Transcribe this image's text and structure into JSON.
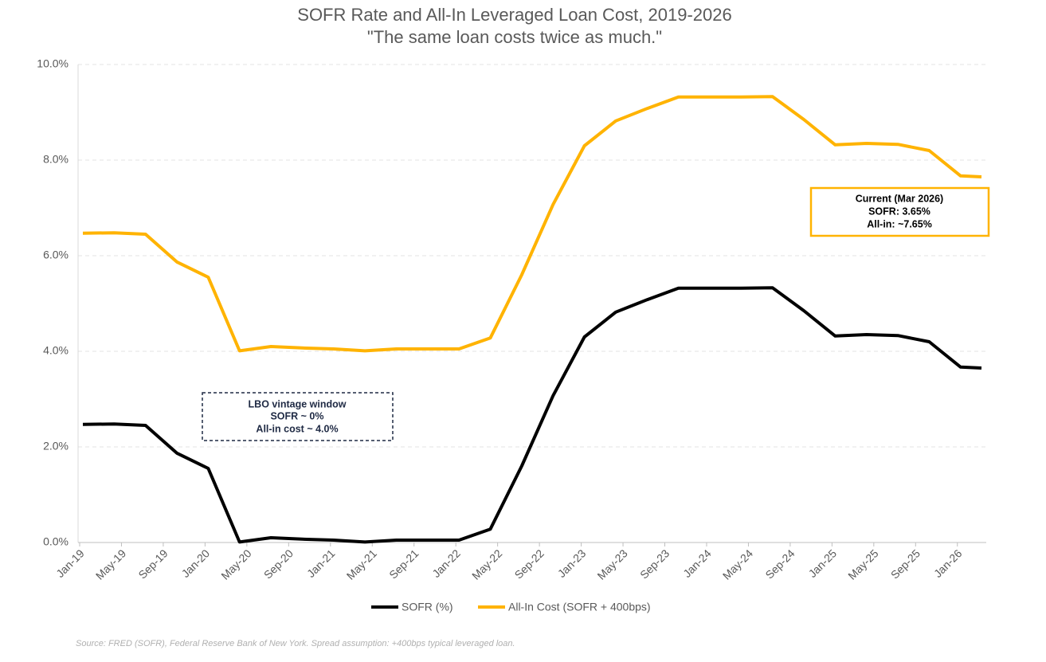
{
  "chart_data": {
    "type": "line",
    "title": "SOFR Rate and All-In Leveraged Loan Cost, 2019-2026",
    "subtitle": "\"The same loan costs twice as much.\"",
    "x": [
      "2019-01",
      "2019-04",
      "2019-07",
      "2019-10",
      "2020-01",
      "2020-04",
      "2020-07",
      "2020-10",
      "2021-01",
      "2021-04",
      "2021-07",
      "2021-10",
      "2022-01",
      "2022-04",
      "2022-07",
      "2022-10",
      "2023-01",
      "2023-04",
      "2023-07",
      "2023-10",
      "2024-01",
      "2024-04",
      "2024-07",
      "2024-10",
      "2025-01",
      "2025-04",
      "2025-07",
      "2025-10",
      "2026-01",
      "2026-03"
    ],
    "series": [
      {
        "name": "SOFR (%)",
        "color": "#000000",
        "values": [
          2.47,
          2.48,
          2.45,
          1.87,
          1.55,
          0.01,
          0.1,
          0.07,
          0.05,
          0.01,
          0.05,
          0.05,
          0.05,
          0.28,
          1.6,
          3.07,
          4.3,
          4.82,
          5.08,
          5.32,
          5.32,
          5.32,
          5.33,
          4.85,
          4.32,
          4.35,
          4.33,
          4.2,
          3.67,
          3.65
        ]
      },
      {
        "name": "All-In Cost (SOFR + 400bps)",
        "color": "#FFB300",
        "values": [
          6.47,
          6.48,
          6.45,
          5.87,
          5.55,
          4.01,
          4.1,
          4.07,
          4.05,
          4.01,
          4.05,
          4.05,
          4.05,
          4.28,
          5.6,
          7.07,
          8.3,
          8.82,
          9.08,
          9.32,
          9.32,
          9.32,
          9.33,
          8.85,
          8.32,
          8.35,
          8.33,
          8.2,
          7.67,
          7.65
        ]
      }
    ],
    "xlim": [
      "2019-01",
      "2026-03"
    ],
    "xticks": [
      {
        "value": "2019-01",
        "label": "Jan-19"
      },
      {
        "value": "2019-05",
        "label": "May-19"
      },
      {
        "value": "2019-09",
        "label": "Sep-19"
      },
      {
        "value": "2020-01",
        "label": "Jan-20"
      },
      {
        "value": "2020-05",
        "label": "May-20"
      },
      {
        "value": "2020-09",
        "label": "Sep-20"
      },
      {
        "value": "2021-01",
        "label": "Jan-21"
      },
      {
        "value": "2021-05",
        "label": "May-21"
      },
      {
        "value": "2021-09",
        "label": "Sep-21"
      },
      {
        "value": "2022-01",
        "label": "Jan-22"
      },
      {
        "value": "2022-05",
        "label": "May-22"
      },
      {
        "value": "2022-09",
        "label": "Sep-22"
      },
      {
        "value": "2023-01",
        "label": "Jan-23"
      },
      {
        "value": "2023-05",
        "label": "May-23"
      },
      {
        "value": "2023-09",
        "label": "Sep-23"
      },
      {
        "value": "2024-01",
        "label": "Jan-24"
      },
      {
        "value": "2024-05",
        "label": "May-24"
      },
      {
        "value": "2024-09",
        "label": "Sep-24"
      },
      {
        "value": "2025-01",
        "label": "Jan-25"
      },
      {
        "value": "2025-05",
        "label": "May-25"
      },
      {
        "value": "2025-09",
        "label": "Sep-25"
      },
      {
        "value": "2026-01",
        "label": "Jan-26"
      }
    ],
    "ylim": [
      0,
      10
    ],
    "yticks": [
      {
        "value": 0,
        "label": "0.0%"
      },
      {
        "value": 2,
        "label": "2.0%"
      },
      {
        "value": 4,
        "label": "4.0%"
      },
      {
        "value": 6,
        "label": "6.0%"
      },
      {
        "value": 8,
        "label": "8.0%"
      },
      {
        "value": 10,
        "label": "10.0%"
      }
    ],
    "grid": true,
    "legend": "bottom",
    "annotations": [
      {
        "lines": [
          "LBO vintage window",
          "SOFR ~ 0%",
          "All-in cost ~ 4.0%"
        ]
      },
      {
        "lines": [
          "Current (Mar 2026)",
          "SOFR: 3.65%",
          "All-in: ~7.65%"
        ]
      }
    ],
    "source": "Source: FRED (SOFR), Federal Reserve Bank of New York. Spread assumption: +400bps typical leveraged loan."
  }
}
